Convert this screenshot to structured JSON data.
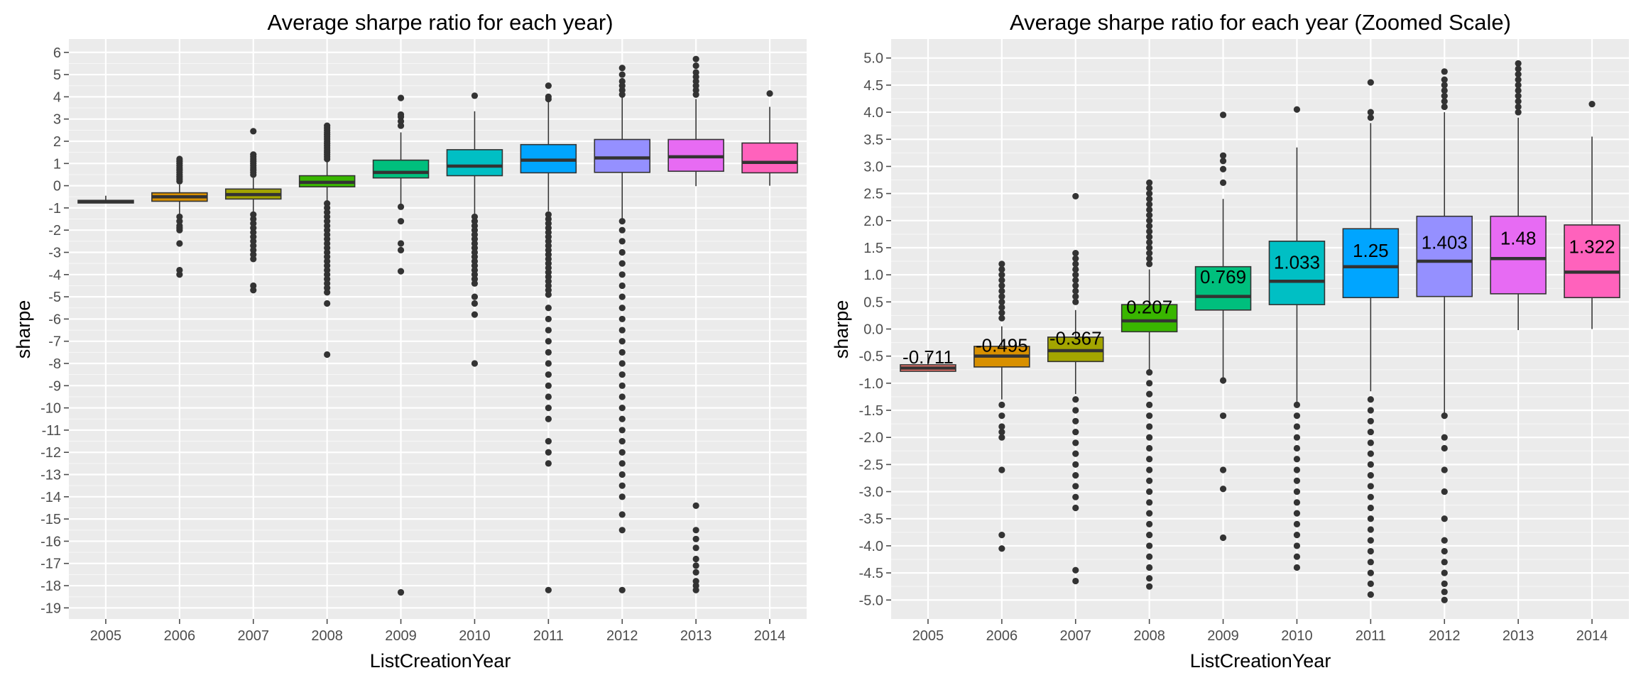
{
  "chart_data": [
    {
      "type": "boxplot",
      "title": "Average sharpe ratio for each year)",
      "xlabel": "ListCreationYear",
      "ylabel": "sharpe",
      "ylim": [
        -19.5,
        6.6
      ],
      "yticks": [
        6,
        5,
        4,
        3,
        2,
        1,
        0,
        -1,
        -2,
        -3,
        -4,
        -5,
        -6,
        -7,
        -8,
        -9,
        -10,
        -11,
        -12,
        -13,
        -14,
        -15,
        -16,
        -17,
        -18,
        -19
      ],
      "grid": true,
      "categories": [
        "2005",
        "2006",
        "2007",
        "2008",
        "2009",
        "2010",
        "2011",
        "2012",
        "2013",
        "2014"
      ],
      "boxes": [
        {
          "category": "2005",
          "color": "#F8766D",
          "q1": -0.78,
          "median": -0.72,
          "q3": -0.66,
          "whisker_low": -0.78,
          "whisker_high": -0.45,
          "outliers": []
        },
        {
          "category": "2006",
          "color": "#D89000",
          "q1": -0.7,
          "median": -0.5,
          "q3": -0.32,
          "whisker_low": -1.3,
          "whisker_high": 0.05,
          "outliers": [
            1.2,
            1.1,
            1.0,
            0.9,
            0.8,
            0.7,
            0.6,
            0.5,
            0.4,
            0.3,
            0.2,
            -1.4,
            -1.6,
            -1.8,
            -1.9,
            -2.0,
            -2.6,
            -3.8,
            -4.0
          ]
        },
        {
          "category": "2007",
          "color": "#A3A500",
          "q1": -0.6,
          "median": -0.4,
          "q3": -0.15,
          "whisker_low": -1.2,
          "whisker_high": 0.35,
          "outliers": [
            1.4,
            1.3,
            1.2,
            1.1,
            1.0,
            0.9,
            0.8,
            0.7,
            0.6,
            0.5,
            -1.3,
            -1.5,
            -1.7,
            -1.9,
            -2.1,
            -2.3,
            -2.5,
            -2.7,
            -2.9,
            -3.1,
            -3.3,
            -4.5,
            -4.7,
            2.45
          ]
        },
        {
          "category": "2008",
          "color": "#39B600",
          "q1": -0.05,
          "median": 0.15,
          "q3": 0.45,
          "whisker_low": -0.75,
          "whisker_high": 1.1,
          "outliers": [
            2.7,
            2.6,
            2.5,
            2.4,
            2.3,
            2.2,
            2.1,
            2.0,
            1.9,
            1.8,
            1.7,
            1.6,
            1.5,
            1.4,
            1.3,
            1.2,
            -0.8,
            -1.0,
            -1.2,
            -1.4,
            -1.6,
            -1.8,
            -2.0,
            -2.2,
            -2.4,
            -2.6,
            -2.8,
            -3.0,
            -3.2,
            -3.4,
            -3.6,
            -3.8,
            -4.0,
            -4.2,
            -4.4,
            -4.6,
            -4.8,
            -5.3,
            -7.6
          ]
        },
        {
          "category": "2009",
          "color": "#00BF7D",
          "q1": 0.35,
          "median": 0.6,
          "q3": 1.15,
          "whisker_low": -0.9,
          "whisker_high": 2.4,
          "outliers": [
            3.95,
            3.2,
            3.1,
            2.9,
            2.7,
            -0.95,
            -1.6,
            -2.6,
            -2.9,
            -3.85,
            -18.3
          ]
        },
        {
          "category": "2010",
          "color": "#00BFC4",
          "q1": 0.45,
          "median": 0.88,
          "q3": 1.62,
          "whisker_low": -1.35,
          "whisker_high": 3.35,
          "outliers": [
            4.05,
            -1.4,
            -1.6,
            -1.8,
            -2.0,
            -2.2,
            -2.4,
            -2.6,
            -2.8,
            -3.0,
            -3.2,
            -3.4,
            -3.6,
            -3.8,
            -4.0,
            -4.2,
            -4.4,
            -5.0,
            -5.3,
            -5.8,
            -8.0
          ]
        },
        {
          "category": "2011",
          "color": "#00A5FF",
          "q1": 0.58,
          "median": 1.15,
          "q3": 1.85,
          "whisker_low": -1.15,
          "whisker_high": 3.8,
          "outliers": [
            4.5,
            4.0,
            3.9,
            -1.3,
            -1.5,
            -1.7,
            -1.9,
            -2.1,
            -2.3,
            -2.5,
            -2.7,
            -2.9,
            -3.1,
            -3.3,
            -3.5,
            -3.7,
            -3.9,
            -4.1,
            -4.3,
            -4.5,
            -4.7,
            -4.9,
            -5.5,
            -6.0,
            -6.5,
            -7.0,
            -7.5,
            -8.0,
            -8.5,
            -9.0,
            -9.5,
            -10.0,
            -10.5,
            -11.5,
            -12.0,
            -12.5,
            -18.2
          ]
        },
        {
          "category": "2012",
          "color": "#9590FF",
          "q1": 0.6,
          "median": 1.25,
          "q3": 2.08,
          "whisker_low": -1.55,
          "whisker_high": 4.0,
          "outliers": [
            5.3,
            5.0,
            4.7,
            4.5,
            4.3,
            4.1,
            -1.6,
            -2.0,
            -2.5,
            -3.0,
            -3.5,
            -4.0,
            -4.5,
            -5.0,
            -5.5,
            -6.0,
            -6.5,
            -7.0,
            -7.5,
            -8.0,
            -8.5,
            -9.0,
            -9.5,
            -10.0,
            -10.5,
            -11.0,
            -11.5,
            -12.0,
            -12.5,
            -13.0,
            -13.5,
            -14.0,
            -14.8,
            -15.5,
            -18.2
          ]
        },
        {
          "category": "2013",
          "color": "#E76BF3",
          "q1": 0.65,
          "median": 1.3,
          "q3": 2.08,
          "whisker_low": -0.02,
          "whisker_high": 3.9,
          "outliers": [
            5.7,
            5.4,
            5.1,
            4.9,
            4.7,
            4.5,
            4.3,
            4.1,
            -14.4,
            -15.5,
            -15.9,
            -16.3,
            -16.8,
            -17.1,
            -17.4,
            -17.8,
            -18.0,
            -18.2
          ]
        },
        {
          "category": "2014",
          "color": "#FF62BC",
          "q1": 0.58,
          "median": 1.05,
          "q3": 1.92,
          "whisker_low": 0.0,
          "whisker_high": 3.55,
          "outliers": [
            4.15
          ]
        }
      ]
    },
    {
      "type": "boxplot",
      "title": "Average sharpe ratio for each year (Zoomed Scale)",
      "xlabel": "ListCreationYear",
      "ylabel": "sharpe",
      "ylim": [
        -5.35,
        5.35
      ],
      "yticks": [
        "5.0",
        "4.5",
        "4.0",
        "3.5",
        "3.0",
        "2.5",
        "2.0",
        "1.5",
        "1.0",
        "0.5",
        "0.0",
        "-0.5",
        "-1.0",
        "-1.5",
        "-2.0",
        "-2.5",
        "-3.0",
        "-3.5",
        "-4.0",
        "-4.5",
        "-5.0"
      ],
      "grid": true,
      "categories": [
        "2005",
        "2006",
        "2007",
        "2008",
        "2009",
        "2010",
        "2011",
        "2012",
        "2013",
        "2014"
      ],
      "mean_labels": [
        "-0.711",
        "-0.495",
        "-0.367",
        "0.207",
        "0.769",
        "1.033",
        "1.25",
        "1.403",
        "1.48",
        "1.322"
      ],
      "boxes": [
        {
          "category": "2005",
          "color": "#F8766D",
          "q1": -0.78,
          "median": -0.72,
          "q3": -0.66,
          "whisker_low": -0.78,
          "whisker_high": -0.45,
          "outliers": []
        },
        {
          "category": "2006",
          "color": "#D89000",
          "q1": -0.7,
          "median": -0.5,
          "q3": -0.32,
          "whisker_low": -1.3,
          "whisker_high": 0.05,
          "outliers": [
            1.2,
            1.1,
            1.0,
            0.9,
            0.8,
            0.7,
            0.6,
            0.5,
            0.4,
            0.3,
            0.2,
            -1.4,
            -1.6,
            -1.8,
            -1.9,
            -2.0,
            -2.6,
            -3.8,
            -4.05
          ]
        },
        {
          "category": "2007",
          "color": "#A3A500",
          "q1": -0.6,
          "median": -0.4,
          "q3": -0.15,
          "whisker_low": -1.2,
          "whisker_high": 0.35,
          "outliers": [
            2.45,
            1.4,
            1.3,
            1.2,
            1.1,
            1.0,
            0.9,
            0.8,
            0.7,
            0.6,
            0.5,
            -1.3,
            -1.5,
            -1.7,
            -1.9,
            -2.1,
            -2.3,
            -2.5,
            -2.7,
            -2.9,
            -3.1,
            -3.3,
            -4.45,
            -4.65
          ]
        },
        {
          "category": "2008",
          "color": "#39B600",
          "q1": -0.05,
          "median": 0.15,
          "q3": 0.45,
          "whisker_low": -0.75,
          "whisker_high": 1.1,
          "outliers": [
            2.7,
            2.6,
            2.5,
            2.4,
            2.3,
            2.2,
            2.1,
            2.0,
            1.9,
            1.8,
            1.7,
            1.6,
            1.5,
            1.4,
            1.3,
            1.2,
            -0.8,
            -1.0,
            -1.2,
            -1.4,
            -1.6,
            -1.8,
            -2.0,
            -2.2,
            -2.4,
            -2.6,
            -2.8,
            -3.0,
            -3.2,
            -3.4,
            -3.6,
            -3.8,
            -4.0,
            -4.2,
            -4.4,
            -4.6,
            -4.75
          ]
        },
        {
          "category": "2009",
          "color": "#00BF7D",
          "q1": 0.35,
          "median": 0.6,
          "q3": 1.15,
          "whisker_low": -0.9,
          "whisker_high": 2.4,
          "outliers": [
            3.95,
            3.2,
            3.1,
            2.95,
            2.7,
            -0.95,
            -1.6,
            -2.6,
            -2.95,
            -3.85
          ]
        },
        {
          "category": "2010",
          "color": "#00BFC4",
          "q1": 0.45,
          "median": 0.88,
          "q3": 1.62,
          "whisker_low": -1.35,
          "whisker_high": 3.35,
          "outliers": [
            4.05,
            -1.4,
            -1.6,
            -1.8,
            -2.0,
            -2.2,
            -2.4,
            -2.6,
            -2.8,
            -3.0,
            -3.2,
            -3.4,
            -3.6,
            -3.8,
            -4.0,
            -4.2,
            -4.4
          ]
        },
        {
          "category": "2011",
          "color": "#00A5FF",
          "q1": 0.58,
          "median": 1.15,
          "q3": 1.85,
          "whisker_low": -1.15,
          "whisker_high": 3.8,
          "outliers": [
            4.55,
            4.0,
            3.9,
            -1.3,
            -1.5,
            -1.7,
            -1.9,
            -2.1,
            -2.3,
            -2.5,
            -2.7,
            -2.9,
            -3.1,
            -3.3,
            -3.5,
            -3.7,
            -3.9,
            -4.1,
            -4.3,
            -4.5,
            -4.7,
            -4.9
          ]
        },
        {
          "category": "2012",
          "color": "#9590FF",
          "q1": 0.6,
          "median": 1.25,
          "q3": 2.08,
          "whisker_low": -1.55,
          "whisker_high": 4.0,
          "outliers": [
            4.75,
            4.6,
            4.5,
            4.4,
            4.3,
            4.2,
            4.1,
            -1.6,
            -2.0,
            -2.2,
            -2.6,
            -3.0,
            -3.5,
            -3.9,
            -4.1,
            -4.3,
            -4.5,
            -4.7,
            -4.85,
            -5.0
          ]
        },
        {
          "category": "2013",
          "color": "#E76BF3",
          "q1": 0.65,
          "median": 1.3,
          "q3": 2.08,
          "whisker_low": -0.02,
          "whisker_high": 3.9,
          "outliers": [
            4.9,
            4.8,
            4.7,
            4.6,
            4.5,
            4.4,
            4.3,
            4.2,
            4.1,
            4.0
          ]
        },
        {
          "category": "2014",
          "color": "#FF62BC",
          "q1": 0.58,
          "median": 1.05,
          "q3": 1.92,
          "whisker_low": 0.0,
          "whisker_high": 3.55,
          "outliers": [
            4.15
          ]
        }
      ]
    }
  ]
}
